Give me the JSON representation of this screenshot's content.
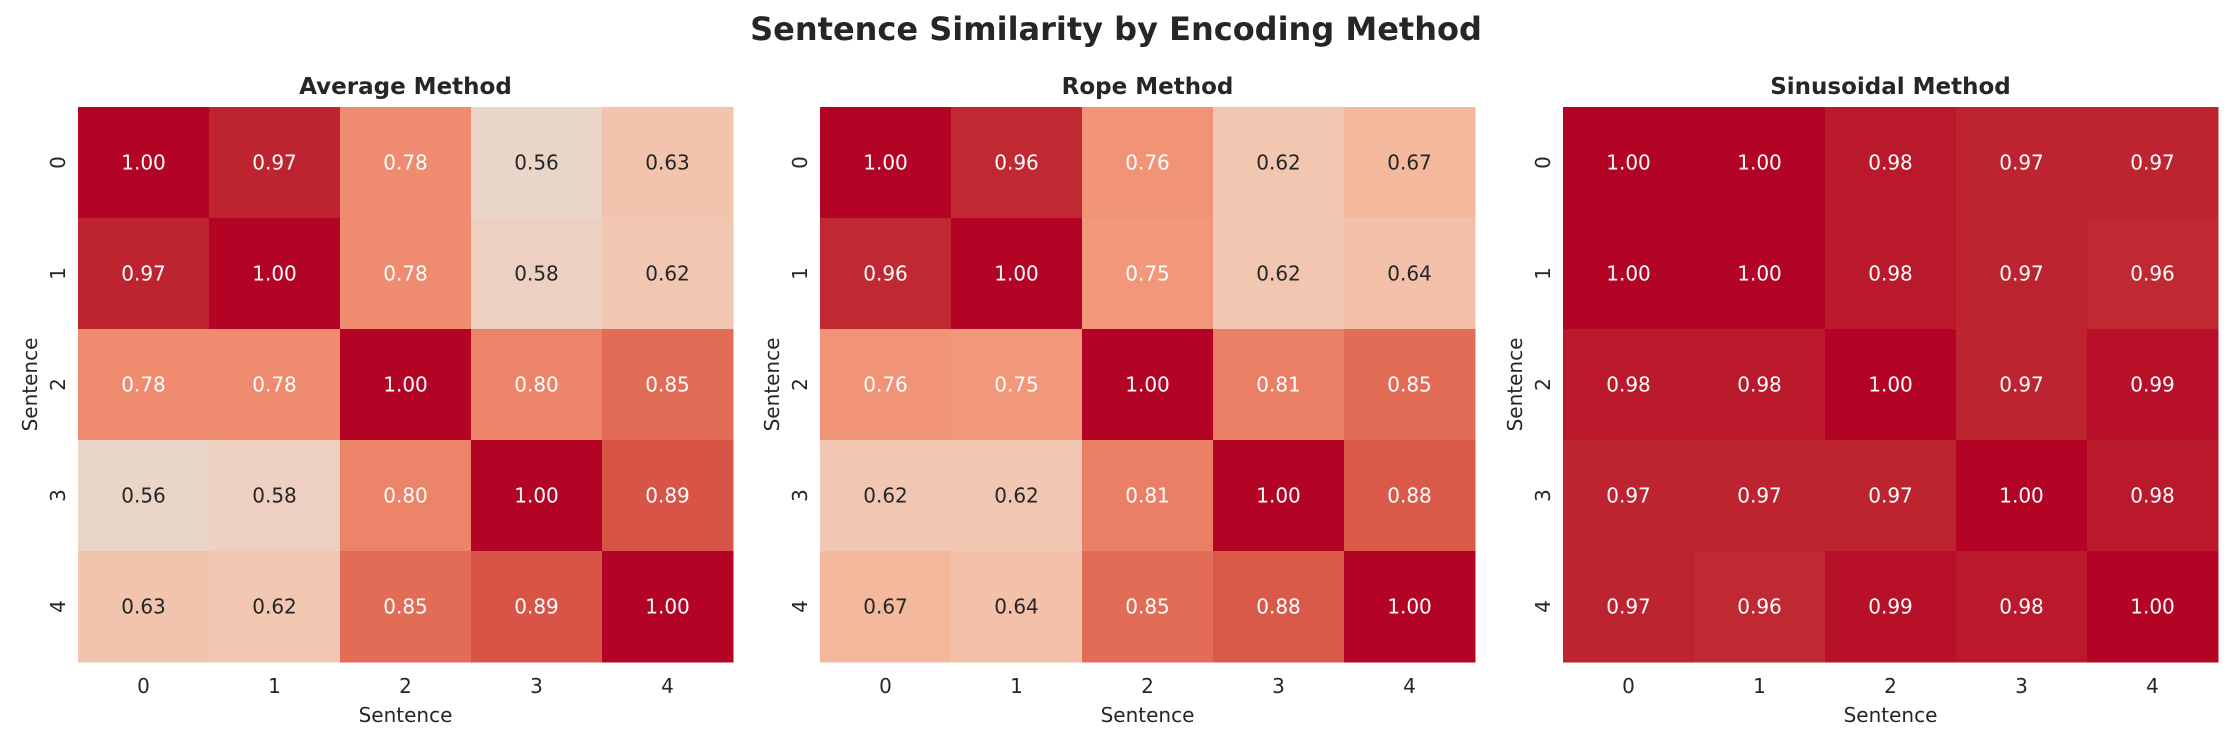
{
  "chart_data": [
    {
      "type": "heatmap",
      "suptitle": "Sentence Similarity by Encoding Method",
      "title": "Average Method",
      "xlabel": "Sentence",
      "ylabel": "Sentence",
      "x_ticks": [
        "0",
        "1",
        "2",
        "3",
        "4"
      ],
      "y_ticks": [
        "0",
        "1",
        "2",
        "3",
        "4"
      ],
      "colormap": "coolwarm",
      "colorbar": false,
      "values": [
        [
          1.0,
          0.97,
          0.78,
          0.56,
          0.63
        ],
        [
          0.97,
          1.0,
          0.78,
          0.58,
          0.62
        ],
        [
          0.78,
          0.78,
          1.0,
          0.8,
          0.85
        ],
        [
          0.56,
          0.58,
          0.8,
          1.0,
          0.89
        ],
        [
          0.63,
          0.62,
          0.85,
          0.89,
          1.0
        ]
      ]
    },
    {
      "type": "heatmap",
      "title": "Rope Method",
      "xlabel": "Sentence",
      "ylabel": "Sentence",
      "x_ticks": [
        "0",
        "1",
        "2",
        "3",
        "4"
      ],
      "y_ticks": [
        "0",
        "1",
        "2",
        "3",
        "4"
      ],
      "colormap": "coolwarm",
      "colorbar": false,
      "values": [
        [
          1.0,
          0.96,
          0.76,
          0.62,
          0.67
        ],
        [
          0.96,
          1.0,
          0.75,
          0.62,
          0.64
        ],
        [
          0.76,
          0.75,
          1.0,
          0.81,
          0.85
        ],
        [
          0.62,
          0.62,
          0.81,
          1.0,
          0.88
        ],
        [
          0.67,
          0.64,
          0.85,
          0.88,
          1.0
        ]
      ]
    },
    {
      "type": "heatmap",
      "title": "Sinusoidal Method",
      "xlabel": "Sentence",
      "ylabel": "Sentence",
      "x_ticks": [
        "0",
        "1",
        "2",
        "3",
        "4"
      ],
      "y_ticks": [
        "0",
        "1",
        "2",
        "3",
        "4"
      ],
      "colormap": "coolwarm",
      "colorbar": false,
      "values": [
        [
          1.0,
          1.0,
          0.98,
          0.97,
          0.97
        ],
        [
          1.0,
          1.0,
          0.98,
          0.97,
          0.96
        ],
        [
          0.98,
          0.98,
          1.0,
          0.97,
          0.99
        ],
        [
          0.97,
          0.97,
          0.97,
          1.0,
          0.98
        ],
        [
          0.97,
          0.96,
          0.99,
          0.98,
          1.0
        ]
      ]
    }
  ]
}
